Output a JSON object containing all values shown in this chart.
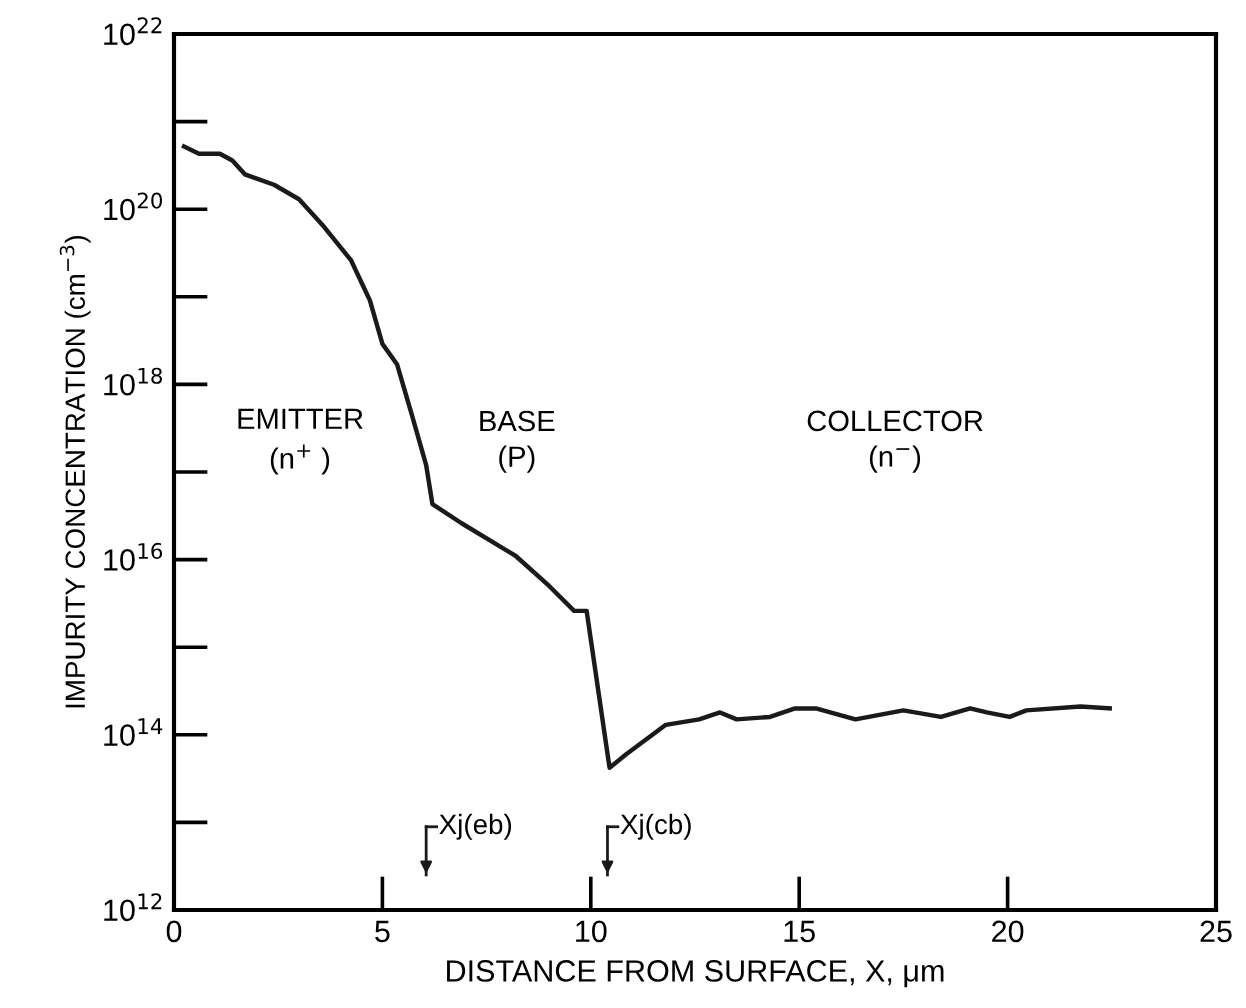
{
  "chart_data": {
    "type": "line",
    "xlabel": "DISTANCE FROM SURFACE, X, μm",
    "ylabel": "IMPURITY CONCENTRATION (cm$^{−3}$)",
    "log": "y",
    "xlim": [
      0,
      25
    ],
    "xticks": [
      0,
      5,
      10,
      15,
      20,
      25
    ],
    "ylim": [
      1000000000000.0,
      1e+22
    ],
    "yticks": [
      {
        "value": 1000000000000.0,
        "label": "10$^{12}$"
      },
      {
        "value": 100000000000000.0,
        "label": "10$^{14}$"
      },
      {
        "value": 1e+16,
        "label": "10$^{16}$"
      },
      {
        "value": 1e+18,
        "label": "10$^{18}$"
      },
      {
        "value": 1e+20,
        "label": "10$^{20}$"
      },
      {
        "value": 1e+22,
        "label": "10$^{22}$"
      }
    ],
    "grid": false,
    "legend": false,
    "marker": "none",
    "line_style": "solid",
    "series": [
      {
        "color": "#1a1a1a",
        "x": [
          0.24,
          0.6,
          1.1,
          1.4,
          1.7,
          2.4,
          3.0,
          3.6,
          4.25,
          4.7,
          5.0,
          5.35,
          5.7,
          6.05,
          6.2,
          6.9,
          8.2,
          9.0,
          9.6,
          9.9,
          10.45,
          10.85,
          11.8,
          12.6,
          13.1,
          13.5,
          14.3,
          14.9,
          15.4,
          16.35,
          17.5,
          18.4,
          19.1,
          19.5,
          20.05,
          20.45,
          21.75,
          22.45
        ],
        "values": [
          5.2e+20,
          4.3e+20,
          4.3e+20,
          3.6e+20,
          2.5e+20,
          1.9e+20,
          1.3e+20,
          6.3e+19,
          2.6e+19,
          9.1e+18,
          2.9e+18,
          1.7e+18,
          4.6e+17,
          1.2e+17,
          4.3e+16,
          2.6e+16,
          1.1e+16,
          5000000000000000.0,
          2600000000000000.0,
          2600000000000000.0,
          42000000000000.0,
          60000000000000.0,
          130000000000000.0,
          150000000000000.0,
          180000000000000.0,
          150000000000000.0,
          160000000000000.0,
          200000000000000.0,
          200000000000000.0,
          150000000000000.0,
          190000000000000.0,
          160000000000000.0,
          200000000000000.0,
          180000000000000.0,
          160000000000000.0,
          190000000000000.0,
          210000000000000.0,
          200000000000000.0
        ]
      }
    ],
    "ref_lines": [
      {
        "axis": "x",
        "value": 6.05,
        "label": "Xj(eb)"
      },
      {
        "axis": "x",
        "value": 10.4,
        "label": "Xj(cb)"
      }
    ],
    "annotations": [
      "EMITTER\n(n$^{+}$ )",
      "BASE\n(P)",
      "COLLECTOR\n(n$^{−}$)"
    ]
  }
}
